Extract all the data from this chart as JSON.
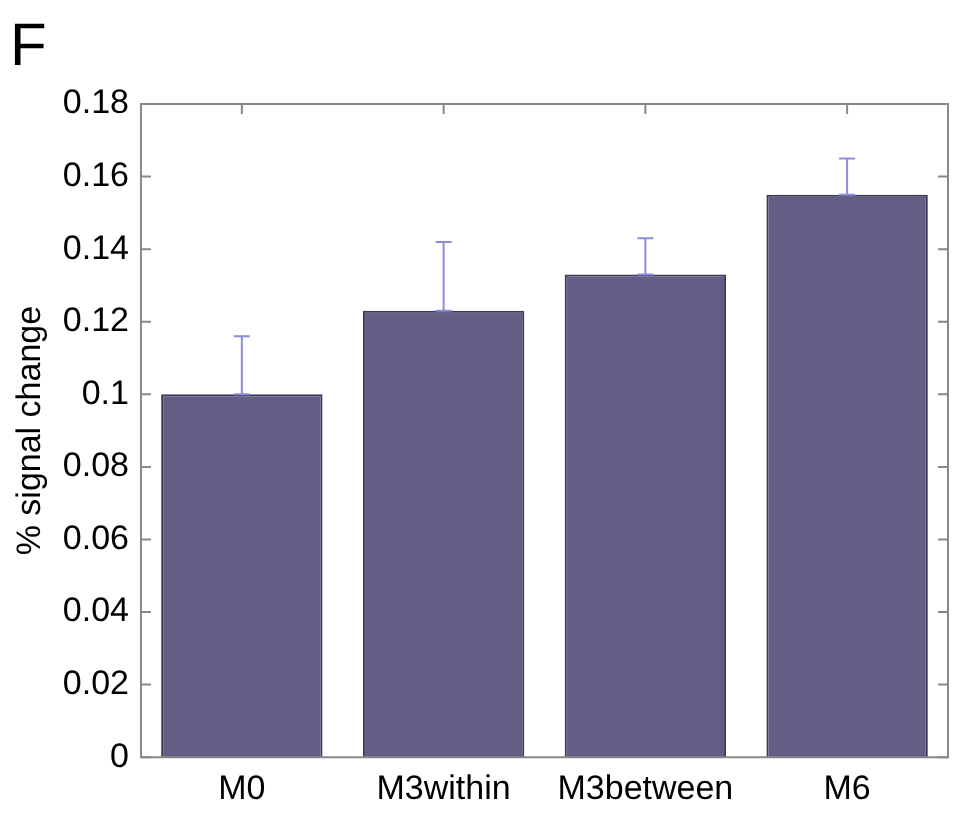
{
  "chart_data": {
    "type": "bar",
    "title": "F",
    "ylabel": "% signal change",
    "categories": [
      "M0",
      "M3within",
      "M3between",
      "M6"
    ],
    "values": [
      0.1,
      0.123,
      0.133,
      0.155
    ],
    "errors": [
      [
        0.1,
        0.116
      ],
      [
        0.123,
        0.142
      ],
      [
        0.133,
        0.143
      ],
      [
        0.155,
        0.165
      ]
    ],
    "color": "#635e86",
    "ylim": [
      0,
      0.18
    ],
    "yticks": [
      0,
      0.02,
      0.04,
      0.06,
      0.08,
      0.1,
      0.12,
      0.14,
      0.16,
      0.18
    ],
    "grid": false,
    "legend": false
  }
}
